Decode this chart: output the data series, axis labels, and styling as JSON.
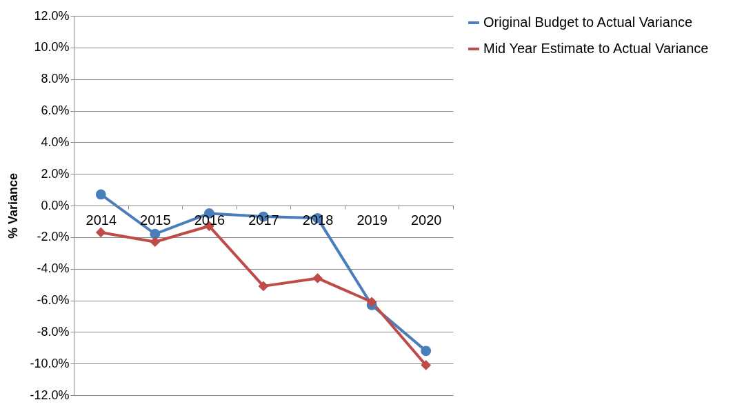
{
  "chart_data": {
    "type": "line",
    "ylabel": "% Variance",
    "categories": [
      "2014",
      "2015",
      "2016",
      "2017",
      "2018",
      "2019",
      "2020"
    ],
    "series": [
      {
        "name": "Original Budget to Actual Variance",
        "color": "#4a7ebb",
        "marker": "circle",
        "values": [
          0.7,
          -1.8,
          -0.5,
          -0.7,
          -0.8,
          -6.3,
          -9.2
        ]
      },
      {
        "name": "Mid Year Estimate to Actual Variance",
        "color": "#be4b48",
        "marker": "diamond",
        "values": [
          -1.7,
          -2.3,
          -1.3,
          -5.1,
          -4.6,
          -6.1,
          -10.1
        ]
      }
    ],
    "ylim": [
      -12,
      12
    ],
    "yticks": [
      {
        "value": -12,
        "label": "-12.0%"
      },
      {
        "value": -10,
        "label": "-10.0%"
      },
      {
        "value": -8,
        "label": "-8.0%"
      },
      {
        "value": -6,
        "label": "-6.0%"
      },
      {
        "value": -4,
        "label": "-4.0%"
      },
      {
        "value": -2,
        "label": "-2.0%"
      },
      {
        "value": 0,
        "label": "0.0%"
      },
      {
        "value": 2,
        "label": "2.0%"
      },
      {
        "value": 4,
        "label": "4.0%"
      },
      {
        "value": 6,
        "label": "6.0%"
      },
      {
        "value": 8,
        "label": "8.0%"
      },
      {
        "value": 10,
        "label": "10.0%"
      },
      {
        "value": 12,
        "label": "12.0%"
      }
    ],
    "grid": "y",
    "legend": "right"
  }
}
